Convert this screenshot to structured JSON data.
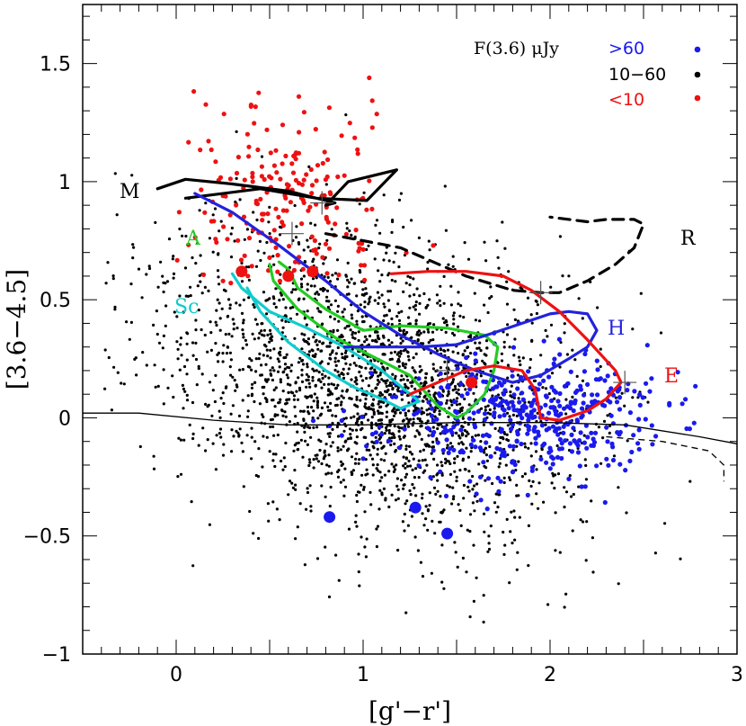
{
  "chart_data": {
    "type": "scatter",
    "xlabel": "[g'−r']",
    "ylabel": "[3.6−4.5]",
    "xlim": [
      -0.5,
      3.0
    ],
    "ylim": [
      -1.0,
      1.75
    ],
    "x_ticks": [
      {
        "v": 0,
        "label": "0"
      },
      {
        "v": 1,
        "label": "1"
      },
      {
        "v": 2,
        "label": "2"
      },
      {
        "v": 3,
        "label": "3"
      }
    ],
    "y_ticks": [
      {
        "v": -1,
        "label": "−1"
      },
      {
        "v": -0.5,
        "label": "−0.5"
      },
      {
        "v": 0,
        "label": "0"
      },
      {
        "v": 0.5,
        "label": "0.5"
      },
      {
        "v": 1,
        "label": "1"
      },
      {
        "v": 1.5,
        "label": "1.5"
      }
    ],
    "legend": {
      "title": "F(3.6) μJy",
      "position": "top-right",
      "entries": [
        {
          "label": ">60",
          "color": "#1a1aee"
        },
        {
          "label": "10−60",
          "color": "#000000"
        },
        {
          "label": "<10",
          "color": "#ee1111"
        }
      ]
    },
    "tracks": [
      {
        "name": "M",
        "label": "M",
        "color": "#000000",
        "dash": false,
        "points": [
          [
            -0.1,
            0.97
          ],
          [
            0.05,
            1.01
          ],
          [
            0.3,
            0.99
          ],
          [
            0.6,
            0.96
          ],
          [
            0.85,
            0.91
          ],
          [
            0.8,
            0.9
          ],
          [
            0.92,
            1.0
          ],
          [
            1.18,
            1.05
          ],
          [
            1.02,
            0.92
          ],
          [
            0.75,
            0.93
          ],
          [
            0.45,
            0.97
          ],
          [
            0.15,
            0.94
          ],
          [
            0.05,
            0.93
          ]
        ]
      },
      {
        "name": "R",
        "label": "R",
        "color": "#000000",
        "dash": true,
        "points": [
          [
            0.8,
            0.78
          ],
          [
            1.2,
            0.72
          ],
          [
            1.55,
            0.6
          ],
          [
            1.8,
            0.54
          ],
          [
            1.95,
            0.53
          ],
          [
            2.05,
            0.53
          ],
          [
            2.2,
            0.58
          ],
          [
            2.35,
            0.65
          ],
          [
            2.45,
            0.72
          ],
          [
            2.5,
            0.82
          ],
          [
            2.45,
            0.84
          ],
          [
            2.3,
            0.84
          ],
          [
            2.2,
            0.83
          ],
          [
            2.0,
            0.85
          ]
        ]
      },
      {
        "name": "A",
        "label": "A",
        "color": "#22cc22",
        "dash": false,
        "points": [
          [
            0.5,
            0.65
          ],
          [
            0.52,
            0.58
          ],
          [
            0.65,
            0.46
          ],
          [
            0.85,
            0.34
          ],
          [
            1.05,
            0.26
          ],
          [
            1.25,
            0.18
          ],
          [
            1.4,
            0.05
          ],
          [
            1.5,
            0.0
          ],
          [
            1.55,
            0.02
          ],
          [
            1.65,
            0.1
          ],
          [
            1.7,
            0.2
          ],
          [
            1.72,
            0.3
          ],
          [
            1.65,
            0.35
          ],
          [
            1.45,
            0.38
          ],
          [
            1.2,
            0.39
          ],
          [
            1.0,
            0.37
          ],
          [
            0.8,
            0.46
          ],
          [
            0.65,
            0.55
          ],
          [
            0.6,
            0.63
          ],
          [
            0.55,
            0.66
          ]
        ]
      },
      {
        "name": "Sc",
        "label": "Sc",
        "color": "#11cccc",
        "dash": false,
        "points": [
          [
            0.3,
            0.61
          ],
          [
            0.35,
            0.55
          ],
          [
            0.5,
            0.45
          ],
          [
            0.7,
            0.38
          ],
          [
            0.9,
            0.3
          ],
          [
            1.1,
            0.2
          ],
          [
            1.22,
            0.12
          ],
          [
            1.3,
            0.07
          ],
          [
            1.2,
            0.04
          ],
          [
            1.1,
            0.08
          ],
          [
            0.95,
            0.13
          ],
          [
            0.8,
            0.2
          ],
          [
            0.6,
            0.32
          ],
          [
            0.45,
            0.45
          ],
          [
            0.38,
            0.55
          ]
        ]
      },
      {
        "name": "H",
        "label": "H",
        "color": "#2222dd",
        "dash": false,
        "points": [
          [
            0.1,
            0.95
          ],
          [
            0.3,
            0.87
          ],
          [
            0.55,
            0.73
          ],
          [
            0.8,
            0.58
          ],
          [
            1.0,
            0.45
          ],
          [
            1.2,
            0.35
          ],
          [
            1.4,
            0.27
          ],
          [
            1.6,
            0.2
          ],
          [
            1.8,
            0.15
          ],
          [
            1.95,
            0.18
          ],
          [
            2.1,
            0.25
          ],
          [
            2.2,
            0.3
          ],
          [
            2.25,
            0.37
          ],
          [
            2.2,
            0.44
          ],
          [
            2.1,
            0.45
          ],
          [
            2.0,
            0.44
          ],
          [
            1.85,
            0.4
          ],
          [
            1.7,
            0.36
          ],
          [
            1.5,
            0.31
          ],
          [
            1.3,
            0.3
          ],
          [
            1.1,
            0.3
          ],
          [
            0.9,
            0.3
          ]
        ]
      },
      {
        "name": "E",
        "label": "E",
        "color": "#ee1111",
        "dash": false,
        "points": [
          [
            1.25,
            0.1
          ],
          [
            1.4,
            0.15
          ],
          [
            1.55,
            0.2
          ],
          [
            1.7,
            0.22
          ],
          [
            1.85,
            0.2
          ],
          [
            1.92,
            0.12
          ],
          [
            1.95,
            0.0
          ],
          [
            2.05,
            -0.01
          ],
          [
            2.2,
            0.03
          ],
          [
            2.3,
            0.08
          ],
          [
            2.38,
            0.15
          ],
          [
            2.35,
            0.2
          ],
          [
            2.2,
            0.33
          ],
          [
            2.05,
            0.45
          ],
          [
            1.9,
            0.54
          ],
          [
            1.75,
            0.6
          ],
          [
            1.55,
            0.62
          ],
          [
            1.35,
            0.62
          ],
          [
            1.15,
            0.61
          ]
        ]
      }
    ],
    "curves": [
      {
        "name": "stellar-locus",
        "color": "#000000",
        "dash": false,
        "points": [
          [
            -0.5,
            0.02
          ],
          [
            -0.2,
            0.02
          ],
          [
            0.2,
            -0.01
          ],
          [
            0.6,
            -0.03
          ],
          [
            1.0,
            -0.03
          ],
          [
            1.5,
            -0.02
          ],
          [
            2.0,
            -0.02
          ],
          [
            2.4,
            -0.03
          ],
          [
            2.8,
            -0.08
          ],
          [
            3.0,
            -0.11
          ]
        ]
      },
      {
        "name": "stellar-locus-dashed",
        "color": "#000000",
        "dash": true,
        "points": [
          [
            2.3,
            -0.08
          ],
          [
            2.6,
            -0.1
          ],
          [
            2.85,
            -0.14
          ],
          [
            2.93,
            -0.2
          ],
          [
            2.93,
            -0.27
          ]
        ]
      }
    ],
    "crosses": [
      {
        "x": 0.78,
        "y": 0.91
      },
      {
        "x": 0.62,
        "y": 0.78
      },
      {
        "x": 1.95,
        "y": 0.53
      },
      {
        "x": 1.45,
        "y": 0.2
      },
      {
        "x": 2.4,
        "y": 0.15
      }
    ],
    "big_points": [
      {
        "x": 0.35,
        "y": 0.62,
        "color": "#ee1111"
      },
      {
        "x": 0.6,
        "y": 0.6,
        "color": "#ee1111"
      },
      {
        "x": 0.73,
        "y": 0.62,
        "color": "#ee1111"
      },
      {
        "x": 1.58,
        "y": 0.15,
        "color": "#ee1111"
      },
      {
        "x": 0.82,
        "y": -0.42,
        "color": "#1a1aee"
      },
      {
        "x": 1.28,
        "y": -0.38,
        "color": "#1a1aee"
      },
      {
        "x": 1.45,
        "y": -0.49,
        "color": "#1a1aee"
      }
    ],
    "populations": [
      {
        "name": "black-10-60",
        "color": "#000000",
        "count": 2400,
        "r": 1.6,
        "cx": 1.05,
        "cy": 0.15,
        "sx": 0.55,
        "sy": 0.3,
        "xmin": -0.4,
        "xmax": 2.8,
        "ymin": -0.95,
        "ymax": 1.65,
        "seed": 17
      },
      {
        "name": "blue-gt60",
        "color": "#1a1aee",
        "count": 430,
        "r": 2.6,
        "cx": 1.85,
        "cy": 0.0,
        "sx": 0.38,
        "sy": 0.13,
        "xmin": 0.2,
        "xmax": 2.8,
        "ymin": -0.5,
        "ymax": 0.8,
        "seed": 23
      },
      {
        "name": "red-lt10",
        "color": "#ee1111",
        "count": 210,
        "r": 2.6,
        "cx": 0.55,
        "cy": 0.9,
        "sx": 0.3,
        "sy": 0.22,
        "xmin": 0.0,
        "xmax": 2.1,
        "ymin": 0.55,
        "ymax": 1.72,
        "seed": 31
      }
    ]
  }
}
